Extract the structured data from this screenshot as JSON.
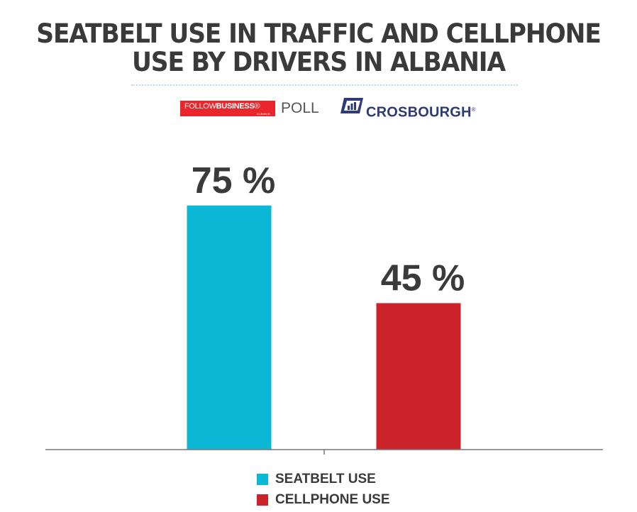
{
  "header": {
    "title_line1": "SEATBELT USE IN TRAFFIC AND CELLPHONE",
    "title_line2": "USE BY DRIVERS IN ALBANIA"
  },
  "logos": {
    "followbusiness_regular": "FOLLOW",
    "followbusiness_bold": "BUSINESS",
    "followbusiness_mark": "®",
    "followbusiness_sub": "ALBANIA",
    "poll": "POLL",
    "crosbourgh": "CROSBOURGH",
    "crosbourgh_mark": "®",
    "crosbourgh_icon": "bar-chart-logo-icon",
    "brand_red": "#e8262b",
    "brand_navy": "#2e3a7a"
  },
  "chart_data": {
    "type": "bar",
    "title": "SEATBELT USE IN TRAFFIC AND CELLPHONE USE BY DRIVERS IN ALBANIA",
    "categories": [
      "SEATBELT USE",
      "CELLPHONE USE"
    ],
    "values": [
      75,
      45
    ],
    "data_labels": [
      "75 %",
      "45 %"
    ],
    "colors": [
      "#0ab8d6",
      "#cc2229"
    ],
    "ylim": [
      0,
      100
    ],
    "grid": false,
    "legend_placement": "bottom"
  }
}
